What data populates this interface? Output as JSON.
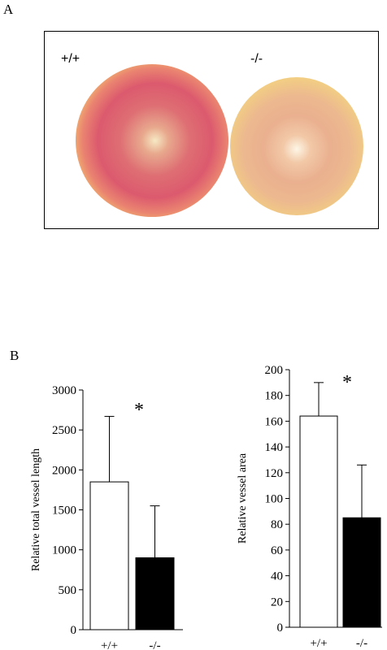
{
  "panels": {
    "a_label": "A",
    "b_label": "B"
  },
  "photo": {
    "wildtype_label": "+/+",
    "knockout_label": "-/-",
    "wildtype_color": "#dc5a6e",
    "knockout_color": "#ecb88f"
  },
  "chart_data": [
    {
      "type": "bar",
      "categories": [
        "+/+",
        "-/-"
      ],
      "values": [
        1850,
        900
      ],
      "error": [
        820,
        650
      ],
      "colors": [
        "#ffffff",
        "#000000"
      ],
      "ylabel": "Relative total vessel length",
      "ylim": [
        0,
        3000
      ],
      "yticks": [
        0,
        500,
        1000,
        1500,
        2000,
        2500,
        3000
      ],
      "annotation": "*",
      "grid": false
    },
    {
      "type": "bar",
      "categories": [
        "+/+",
        "-/-"
      ],
      "values": [
        164,
        85
      ],
      "error": [
        26,
        41
      ],
      "colors": [
        "#ffffff",
        "#000000"
      ],
      "ylabel": "Relative vessel area",
      "ylim": [
        0,
        200
      ],
      "yticks": [
        0,
        20,
        40,
        60,
        80,
        100,
        120,
        140,
        160,
        180,
        200
      ],
      "annotation": "*",
      "grid": false
    }
  ]
}
